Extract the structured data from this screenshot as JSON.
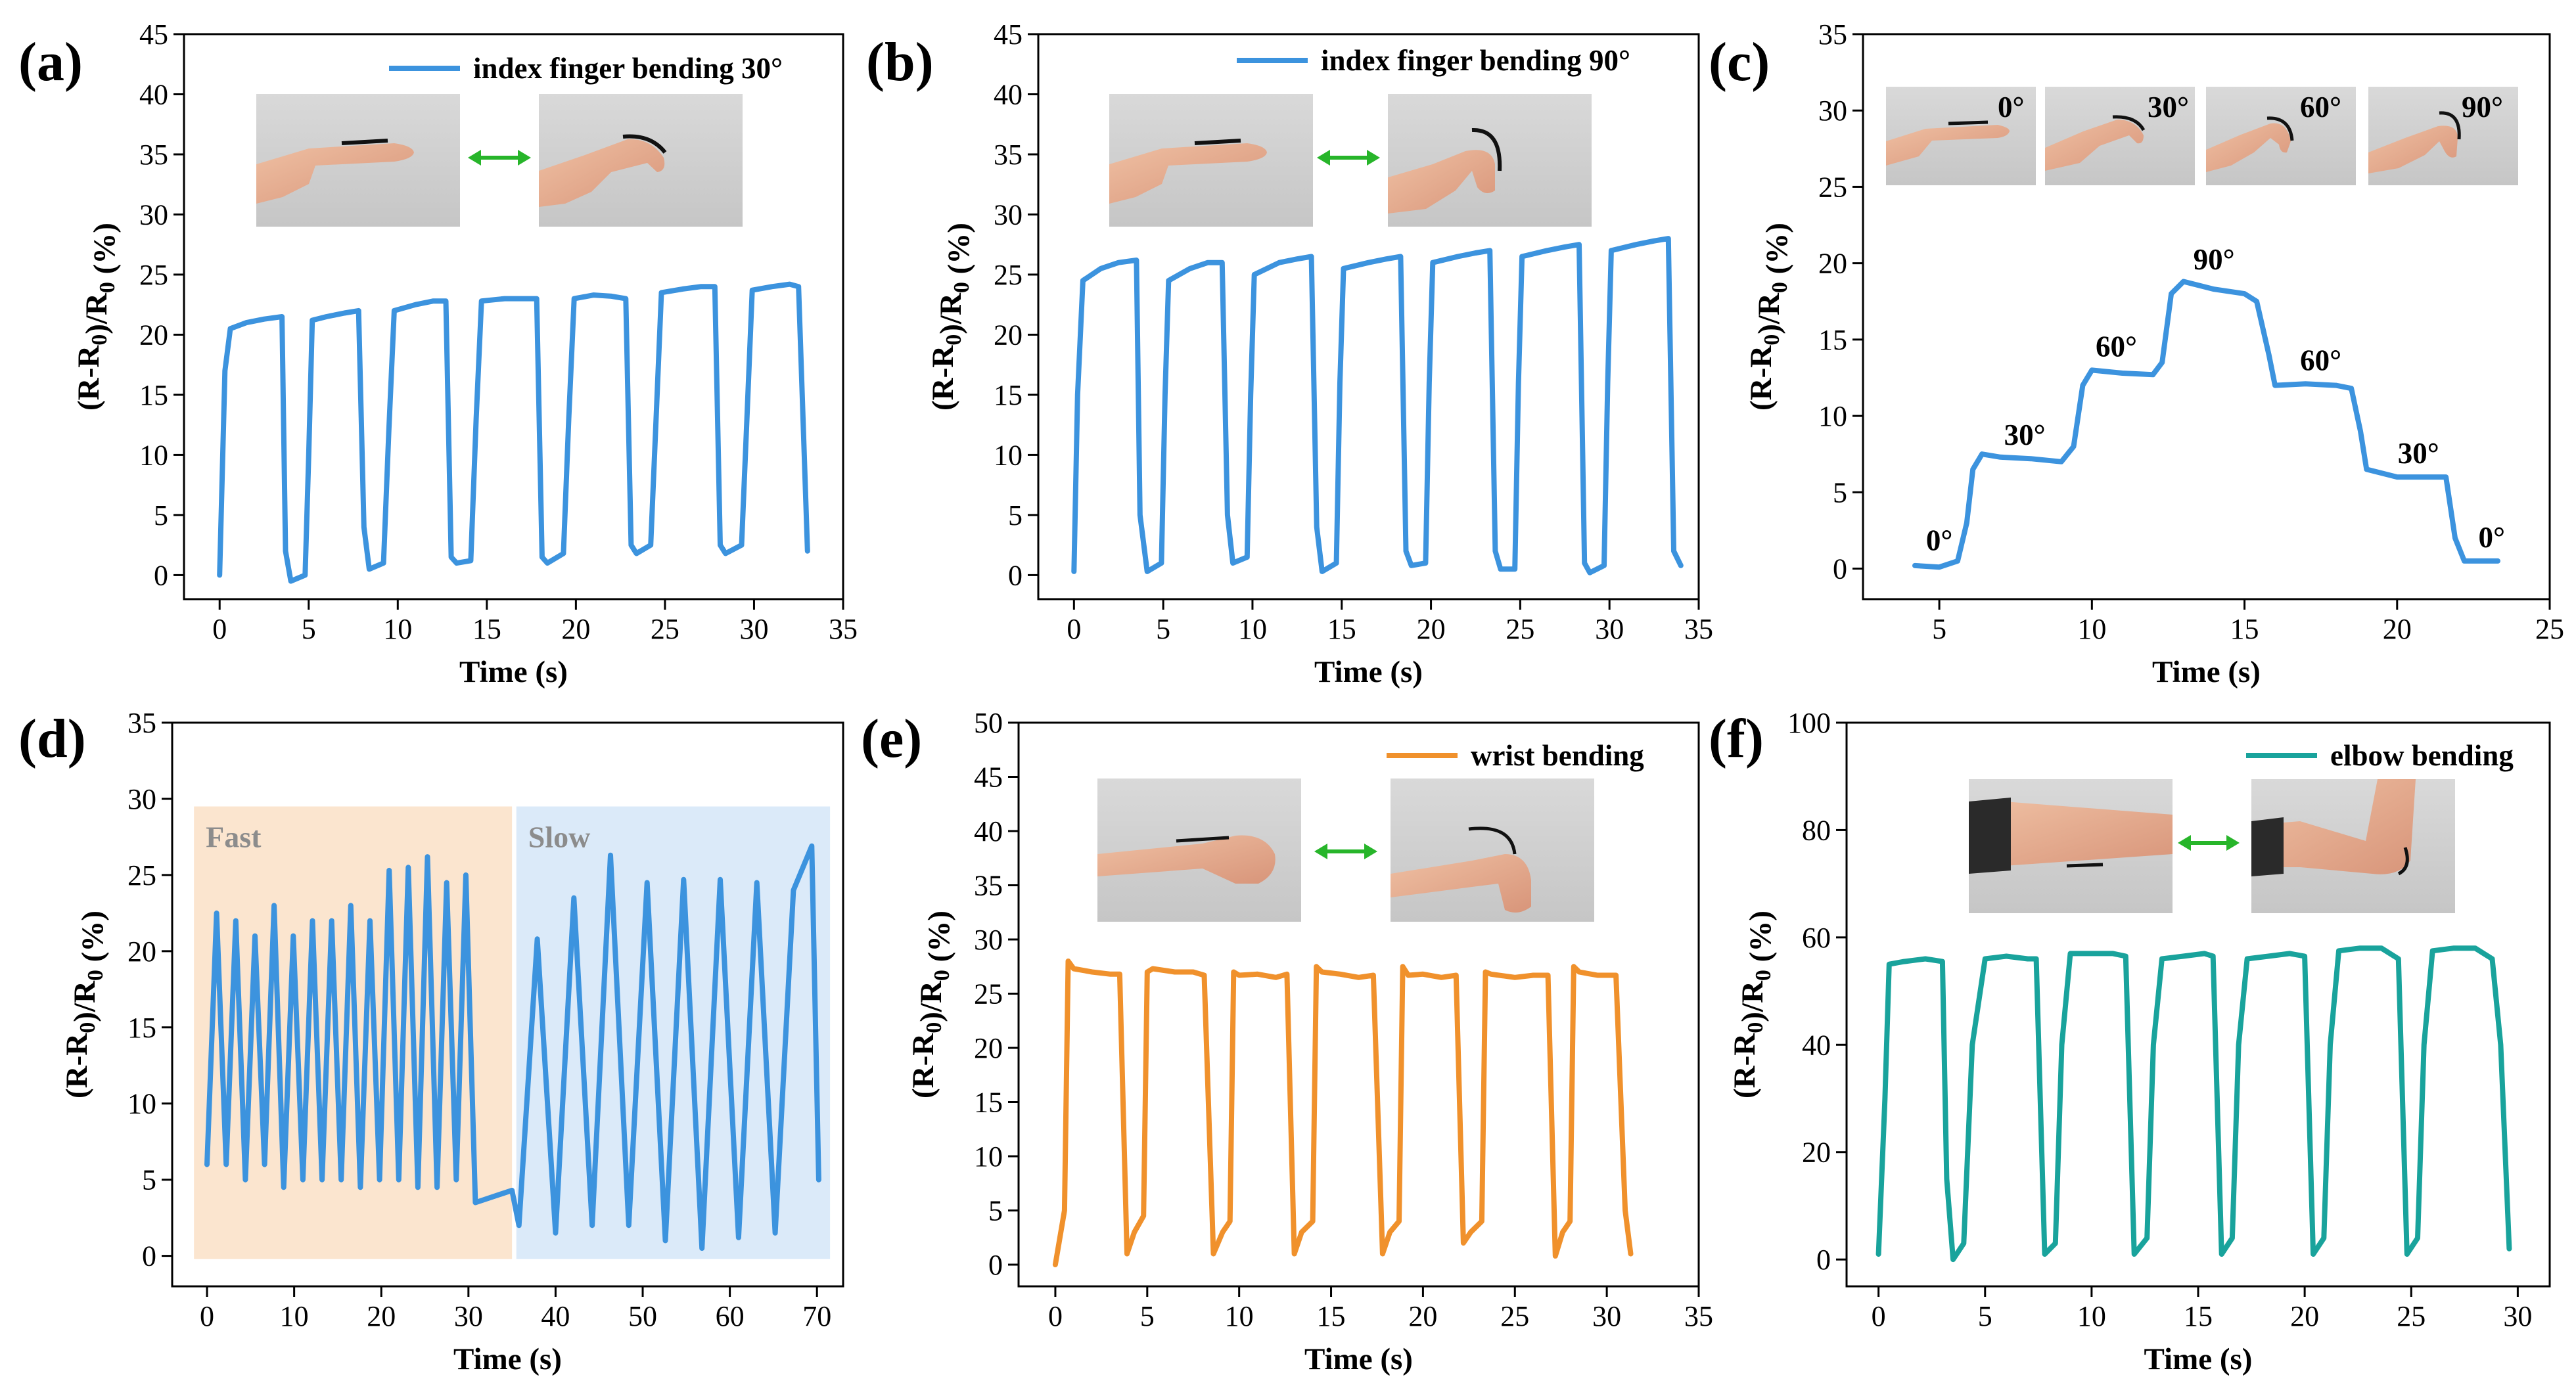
{
  "chart_data": [
    {
      "panel": "(a)",
      "type": "line",
      "xlabel": "Time (s)",
      "ylabel": "(R-R0)/R0 (%)",
      "xlim": [
        -2,
        35
      ],
      "ylim": [
        -2,
        45
      ],
      "xticks": [
        0,
        5,
        10,
        15,
        20,
        25,
        30,
        35
      ],
      "yticks": [
        0,
        5,
        10,
        15,
        20,
        25,
        30,
        35,
        40,
        45
      ],
      "color": "#3c93de",
      "legend": "index finger bending 30°",
      "photos": [
        "finger-straight-photo",
        "finger-bent-30-photo"
      ],
      "x": [
        0,
        0.3,
        0.6,
        1.5,
        2.5,
        3.5,
        3.7,
        4.0,
        4.8,
        5.0,
        5.2,
        6.0,
        7.0,
        7.8,
        8.1,
        8.4,
        9.2,
        9.5,
        9.8,
        11.0,
        12.0,
        12.7,
        13.0,
        13.3,
        14.1,
        14.4,
        14.7,
        16.0,
        17.0,
        17.8,
        18.1,
        18.4,
        19.3,
        19.6,
        19.9,
        21.0,
        22.0,
        22.8,
        23.1,
        23.4,
        24.2,
        24.5,
        24.8,
        26.0,
        27.0,
        27.8,
        28.1,
        28.4,
        29.3,
        29.6,
        29.9,
        31.0,
        32.0,
        32.5,
        33.0
      ],
      "y": [
        0,
        17,
        20.5,
        21.0,
        21.3,
        21.5,
        2,
        -0.5,
        0,
        10,
        21.2,
        21.5,
        21.8,
        22,
        4,
        0.5,
        1,
        12,
        22,
        22.5,
        22.8,
        22.8,
        1.5,
        1,
        1.2,
        13,
        22.8,
        23,
        23,
        23,
        1.5,
        1,
        1.8,
        13,
        23,
        23.3,
        23.2,
        23,
        2.5,
        1.8,
        2.5,
        13,
        23.5,
        23.8,
        24,
        24,
        2.5,
        1.8,
        2.5,
        13,
        23.7,
        24,
        24.2,
        24,
        2
      ]
    },
    {
      "panel": "(b)",
      "type": "line",
      "xlabel": "Time (s)",
      "ylabel": "(R-R0)/R0 (%)",
      "xlim": [
        -2,
        35
      ],
      "ylim": [
        -2,
        45
      ],
      "xticks": [
        0,
        5,
        10,
        15,
        20,
        25,
        30,
        35
      ],
      "yticks": [
        0,
        5,
        10,
        15,
        20,
        25,
        30,
        35,
        40,
        45
      ],
      "color": "#3c93de",
      "legend": "index finger bending 90°",
      "photos": [
        "finger-straight-photo",
        "finger-bent-90-photo"
      ],
      "x": [
        0,
        0.2,
        0.5,
        1.5,
        2.5,
        3.5,
        3.7,
        4.1,
        4.9,
        5.1,
        5.3,
        6.5,
        7.5,
        8.3,
        8.6,
        8.9,
        9.7,
        9.9,
        10.1,
        11.5,
        12.5,
        13.3,
        13.6,
        13.9,
        14.7,
        14.9,
        15.1,
        16.5,
        17.5,
        18.3,
        18.6,
        18.9,
        19.7,
        19.9,
        20.1,
        21.5,
        22.5,
        23.3,
        23.6,
        23.9,
        24.7,
        24.9,
        25.1,
        26.5,
        27.5,
        28.3,
        28.6,
        28.9,
        29.7,
        29.9,
        30.1,
        31.5,
        32.5,
        33.3,
        33.6,
        34.0
      ],
      "y": [
        0.3,
        15,
        24.5,
        25.5,
        26,
        26.2,
        5,
        0.3,
        1,
        15,
        24.5,
        25.5,
        26,
        26,
        5,
        1,
        1.5,
        15,
        25,
        26,
        26.3,
        26.5,
        4,
        0.3,
        1,
        16,
        25.5,
        26,
        26.3,
        26.5,
        2,
        0.8,
        1,
        16,
        26,
        26.5,
        26.8,
        27,
        2,
        0.5,
        0.5,
        16,
        26.5,
        27,
        27.3,
        27.5,
        1,
        0.2,
        0.8,
        16,
        27,
        27.5,
        27.8,
        28,
        2,
        0.8
      ]
    },
    {
      "panel": "(c)",
      "type": "line",
      "xlabel": "Time (s)",
      "ylabel": "(R-R0)/R0 (%)",
      "xlim": [
        2.5,
        25
      ],
      "ylim": [
        -2,
        35
      ],
      "xticks": [
        5,
        10,
        15,
        20,
        25
      ],
      "yticks": [
        0,
        5,
        10,
        15,
        20,
        25,
        30,
        35
      ],
      "color": "#3c93de",
      "photo_labels": [
        "0°",
        "30°",
        "60°",
        "90°"
      ],
      "annotations": [
        {
          "text": "0°",
          "x": 5.0,
          "y": 1.2
        },
        {
          "text": "30°",
          "x": 7.8,
          "y": 8.1
        },
        {
          "text": "60°",
          "x": 10.8,
          "y": 13.9
        },
        {
          "text": "90°",
          "x": 14.0,
          "y": 19.6
        },
        {
          "text": "60°",
          "x": 17.5,
          "y": 13.0
        },
        {
          "text": "30°",
          "x": 20.7,
          "y": 6.9
        },
        {
          "text": "0°",
          "x": 23.1,
          "y": 1.4
        }
      ],
      "x": [
        4.2,
        5.0,
        5.6,
        5.9,
        6.1,
        6.4,
        7.0,
        8.0,
        9.0,
        9.4,
        9.7,
        10.0,
        11.0,
        12.0,
        12.3,
        12.6,
        13.0,
        14.0,
        15.0,
        15.4,
        15.8,
        16.0,
        17.0,
        18.0,
        18.5,
        18.8,
        19.0,
        20.0,
        21.0,
        21.6,
        21.9,
        22.2,
        23.3
      ],
      "y": [
        0.2,
        0.1,
        0.5,
        3,
        6.5,
        7.5,
        7.3,
        7.2,
        7,
        8,
        12,
        13,
        12.8,
        12.7,
        13.5,
        18,
        18.8,
        18.3,
        18,
        17.5,
        14,
        12,
        12.1,
        12,
        11.8,
        9,
        6.5,
        6,
        6,
        6,
        2,
        0.5,
        0.5
      ]
    },
    {
      "panel": "(d)",
      "type": "line",
      "xlabel": "Time (s)",
      "ylabel": "(R-R0)/R0 (%)",
      "xlim": [
        -4,
        73
      ],
      "ylim": [
        -2,
        35
      ],
      "xticks": [
        0,
        10,
        20,
        30,
        40,
        50,
        60,
        70
      ],
      "yticks": [
        0,
        5,
        10,
        15,
        20,
        25,
        30,
        35
      ],
      "color": "#3c93de",
      "regions": [
        {
          "label": "Fast",
          "xmin": -1.5,
          "xmax": 35.0,
          "ymin": -0.2,
          "ymax": 29.5,
          "color": "#fbe5cf"
        },
        {
          "label": "Slow",
          "xmin": 35.5,
          "xmax": 71.5,
          "ymin": -0.2,
          "ymax": 29.5,
          "color": "#dbeaf9"
        }
      ],
      "x": [
        0,
        1.1,
        2.2,
        3.3,
        4.4,
        5.5,
        6.6,
        7.7,
        8.8,
        9.9,
        11.0,
        12.1,
        13.2,
        14.3,
        15.4,
        16.5,
        17.6,
        18.7,
        19.8,
        20.9,
        22.0,
        23.1,
        24.2,
        25.3,
        26.4,
        27.5,
        28.6,
        29.7,
        30.8,
        35.0,
        35.8,
        37.9,
        40.0,
        42.1,
        44.2,
        46.3,
        48.4,
        50.5,
        52.6,
        54.7,
        56.8,
        58.9,
        61.0,
        63.1,
        65.2,
        67.3,
        69.4,
        70.2
      ],
      "y": [
        6,
        22.5,
        6,
        22,
        5,
        21,
        6,
        23,
        4.5,
        21,
        5,
        22,
        5,
        22,
        5,
        23,
        4.5,
        22,
        5,
        25.3,
        5,
        25.5,
        4.5,
        26.2,
        4.5,
        24.5,
        5,
        25,
        3.5,
        4.3,
        2,
        20.8,
        1.5,
        23.5,
        2,
        26.3,
        2,
        24.5,
        1,
        24.7,
        0.5,
        24.7,
        1.2,
        24.5,
        1.5,
        24,
        26.9,
        5
      ]
    },
    {
      "panel": "(e)",
      "type": "line",
      "xlabel": "Time (s)",
      "ylabel": "(R-R0)/R0 (%)",
      "xlim": [
        -2,
        35
      ],
      "ylim": [
        -2,
        50
      ],
      "xticks": [
        0,
        5,
        10,
        15,
        20,
        25,
        30,
        35
      ],
      "yticks": [
        0,
        5,
        10,
        15,
        20,
        25,
        30,
        35,
        40,
        45,
        50
      ],
      "color": "#f0912c",
      "legend": "wrist bending",
      "photos": [
        "wrist-straight-photo",
        "wrist-bent-photo"
      ],
      "x": [
        0,
        0.4,
        0.5,
        0.7,
        1.0,
        2.0,
        3.0,
        3.5,
        3.9,
        4.3,
        4.8,
        5.0,
        5.3,
        6.5,
        7.5,
        8.1,
        8.6,
        9.1,
        9.5,
        9.7,
        10.0,
        11.0,
        12.0,
        12.6,
        13.0,
        13.4,
        14.0,
        14.2,
        14.5,
        15.5,
        16.5,
        17.3,
        17.8,
        18.2,
        18.7,
        18.9,
        19.2,
        20.0,
        21.0,
        21.8,
        22.2,
        22.6,
        23.2,
        23.4,
        23.7,
        25.0,
        26.0,
        26.8,
        27.2,
        27.6,
        28.0,
        28.2,
        28.5,
        29.5,
        30.5,
        31.0,
        31.3
      ],
      "y": [
        0,
        4,
        5,
        28,
        27.3,
        27,
        26.8,
        26.8,
        1,
        3,
        4.5,
        27,
        27.3,
        27,
        27,
        26.7,
        1,
        3,
        4,
        27,
        26.7,
        26.8,
        26.5,
        26.8,
        1,
        3,
        4,
        27.5,
        27,
        26.8,
        26.5,
        26.7,
        1,
        3,
        4,
        27.5,
        26.7,
        26.8,
        26.5,
        26.7,
        2,
        3,
        4,
        27,
        26.8,
        26.5,
        26.7,
        26.7,
        0.8,
        3,
        4,
        27.5,
        27,
        26.7,
        26.7,
        5,
        1
      ]
    },
    {
      "panel": "(f)",
      "type": "line",
      "xlabel": "Time (s)",
      "ylabel": "(R-R0)/R0 (%)",
      "xlim": [
        -1.5,
        31.5
      ],
      "ylim": [
        -5,
        100
      ],
      "xticks": [
        0,
        5,
        10,
        15,
        20,
        25,
        30
      ],
      "yticks": [
        0,
        20,
        40,
        60,
        80,
        100
      ],
      "color": "#19a39c",
      "legend": "elbow bending",
      "photos": [
        "arm-straight-photo",
        "arm-bent-photo"
      ],
      "x": [
        0,
        0.3,
        0.5,
        1.2,
        2.2,
        3.0,
        3.2,
        3.5,
        4.0,
        4.4,
        5.0,
        6.0,
        7.0,
        7.4,
        7.8,
        8.3,
        8.6,
        9.0,
        10.0,
        11.0,
        11.6,
        12.0,
        12.6,
        12.9,
        13.3,
        14.3,
        15.3,
        15.7,
        16.1,
        16.6,
        16.9,
        17.3,
        18.3,
        19.3,
        20.0,
        20.4,
        20.9,
        21.2,
        21.6,
        22.6,
        23.6,
        24.4,
        24.8,
        25.3,
        25.6,
        26.0,
        27.0,
        28.0,
        28.8,
        29.2,
        29.6
      ],
      "y": [
        1,
        30,
        55,
        55.5,
        56,
        55.5,
        15,
        0,
        3,
        40,
        56,
        56.5,
        56,
        56,
        1,
        3,
        40,
        57,
        57,
        57,
        56.5,
        1,
        4,
        40,
        56,
        56.5,
        57,
        56.5,
        1,
        4,
        40,
        56,
        56.5,
        57,
        56.5,
        1,
        4,
        40,
        57.5,
        58,
        58,
        56,
        1,
        4,
        40,
        57.5,
        58,
        58,
        56,
        40,
        2
      ]
    }
  ]
}
